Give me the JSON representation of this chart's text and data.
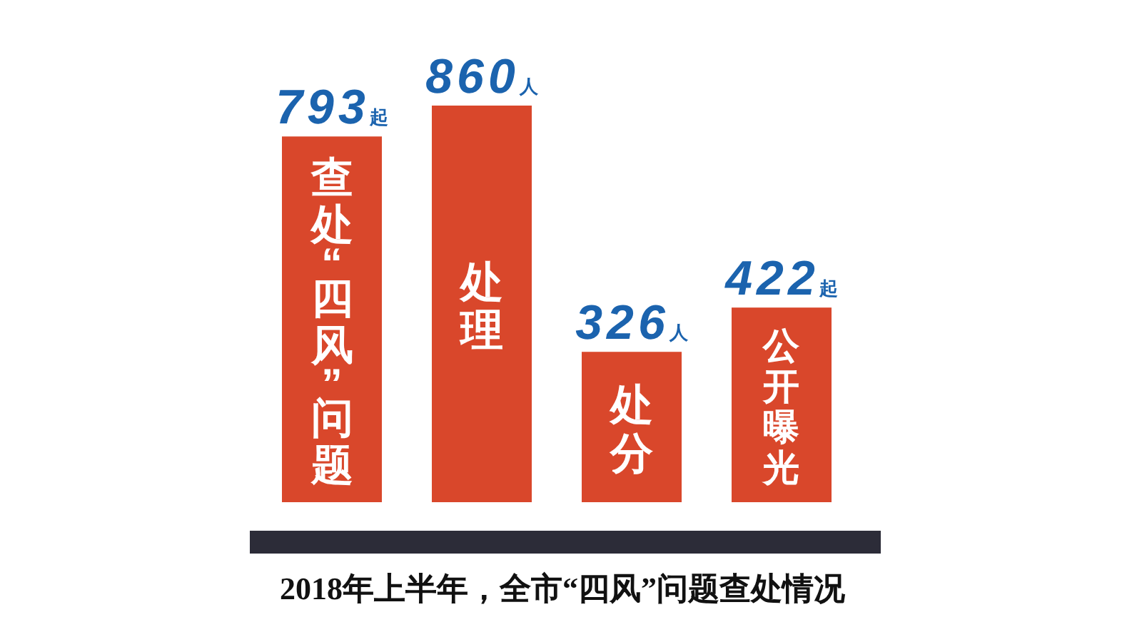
{
  "chart_data": {
    "type": "bar",
    "title": "2018年上半年，全市“四风”问题查处情况",
    "categories": [
      "查处“四风”问题",
      "处理",
      "处分",
      "公开曝光"
    ],
    "values": [
      793,
      860,
      326,
      422
    ],
    "value_labels": [
      "793起",
      "860人",
      "326人",
      "422起"
    ],
    "color": "#d9472b"
  }
}
